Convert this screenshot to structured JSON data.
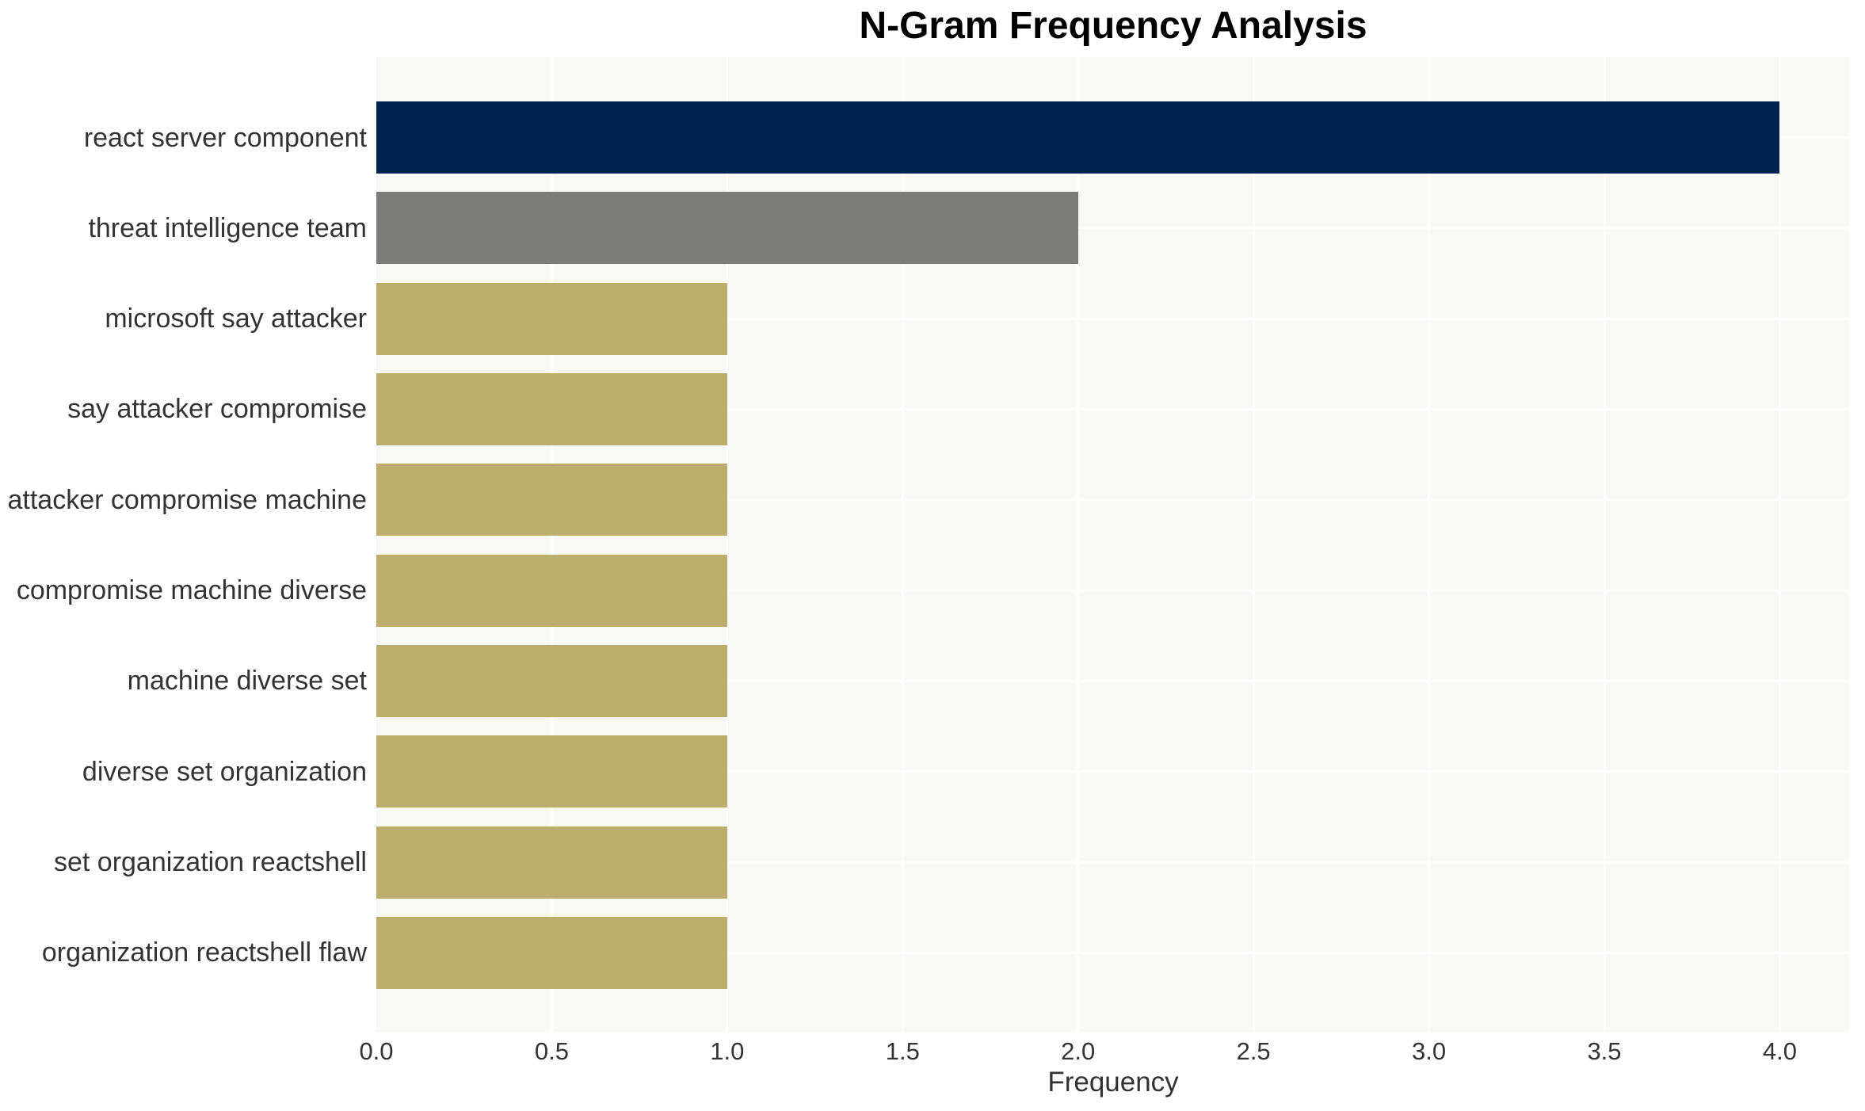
{
  "chart_data": {
    "type": "bar",
    "orientation": "horizontal",
    "title": "N-Gram Frequency Analysis",
    "xlabel": "Frequency",
    "ylabel": "",
    "categories": [
      "react server component",
      "threat intelligence team",
      "microsoft say attacker",
      "say attacker compromise",
      "attacker compromise machine",
      "compromise machine diverse",
      "machine diverse set",
      "diverse set organization",
      "set organization reactshell",
      "organization reactshell flaw"
    ],
    "values": [
      4,
      2,
      1,
      1,
      1,
      1,
      1,
      1,
      1,
      1
    ],
    "bar_colors": [
      "#002350",
      "#7b7b78",
      "#bbad6c",
      "#bbad6c",
      "#bbad6c",
      "#bbad6c",
      "#bbad6c",
      "#bbad6c",
      "#bbad6c",
      "#bbad6c"
    ],
    "xticks": [
      0.0,
      0.5,
      1.0,
      1.5,
      2.0,
      2.5,
      3.0,
      3.5,
      4.0
    ],
    "xtick_labels": [
      "0.0",
      "0.5",
      "1.0",
      "1.5",
      "2.0",
      "2.5",
      "3.0",
      "3.5",
      "4.0"
    ],
    "xlim": [
      0,
      4.2
    ],
    "grid": true,
    "legend": false,
    "colors": {
      "plot_background": "#f8f8f7",
      "gridline": "#ffffff",
      "title_text": "#000000",
      "axis_text": "#333333"
    }
  }
}
